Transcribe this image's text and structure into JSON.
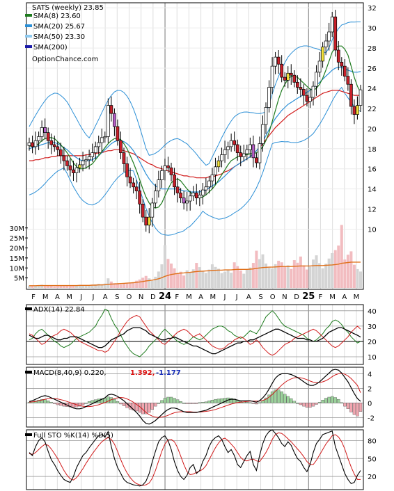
{
  "chart_data": {
    "type": "candlestick",
    "symbol_label": "SATS (weekly) 23.85",
    "watermark": "OptionChance.com",
    "legend": [
      {
        "label": "SMA(8) 23.60",
        "color": "#1e7b1e"
      },
      {
        "label": "SMA(20) 25.67",
        "color": "#2b8fd6"
      },
      {
        "label": "SMA(50) 23.30",
        "color": "#8ec9ef"
      },
      {
        "label": "SMA(200)",
        "color": "#1a1aa8"
      }
    ],
    "price_axis": {
      "ylim": [
        9,
        32.5
      ],
      "ticks": [
        10,
        12,
        14,
        16,
        18,
        20,
        22,
        24,
        26,
        28,
        30,
        32
      ]
    },
    "volume_axis": {
      "ylim": [
        0,
        32
      ],
      "ticks": [
        "5M",
        "10M",
        "15M",
        "20M",
        "25M",
        "30M"
      ],
      "tick_values": [
        5,
        10,
        15,
        20,
        25,
        30
      ]
    },
    "x_labels": [
      "F",
      "M",
      "A",
      "M",
      "J",
      "J",
      "A",
      "S",
      "O",
      "N",
      "D",
      "24",
      "F",
      "M",
      "A",
      "M",
      "J",
      "J",
      "A",
      "S",
      "O",
      "N",
      "D",
      "25",
      "F",
      "M",
      "A",
      "M"
    ],
    "year_marks": [
      "24",
      "25"
    ],
    "closes": [
      18.6,
      18.2,
      18.8,
      19.2,
      20.1,
      19.6,
      18.8,
      18.4,
      18.2,
      17.9,
      17.3,
      16.8,
      16.3,
      15.9,
      15.6,
      16.1,
      16.4,
      16.8,
      16.9,
      17.2,
      17.6,
      18.2,
      18.6,
      19.1,
      19.2,
      22.3,
      21.5,
      20.2,
      18.8,
      17.6,
      16.5,
      15.2,
      14.6,
      14.2,
      13.8,
      12.5,
      11.2,
      10.4,
      11.2,
      12.6,
      13.8,
      14.9,
      15.8,
      16.3,
      16.1,
      15.4,
      14.2,
      13.6,
      13.1,
      12.6,
      12.8,
      13.3,
      13.6,
      13.1,
      13.4,
      13.9,
      14.2,
      14.8,
      15.4,
      16.2,
      16.8,
      17.4,
      17.9,
      18.2,
      18.8,
      18.4,
      17.6,
      17.2,
      17.5,
      17.9,
      18.4,
      17.1,
      16.6,
      18.5,
      20.4,
      22.1,
      24.1,
      26.2,
      27.1,
      26.4,
      25.1,
      24.8,
      25.5,
      25.3,
      24.6,
      24.1,
      23.9,
      23.3,
      22.7,
      23.1,
      24.2,
      25.6,
      26.7,
      28.1,
      28.7,
      29.6,
      31.1,
      27.8,
      26.6,
      26.2,
      25.2,
      24.4,
      22.2,
      21.4,
      22.3,
      23.85
    ],
    "sma8": [
      18.3,
      18.2,
      18.3,
      18.5,
      18.8,
      19.0,
      19.1,
      19.1,
      19.0,
      18.7,
      18.4,
      18.0,
      17.6,
      17.1,
      16.6,
      16.2,
      16.0,
      16.0,
      16.1,
      16.3,
      16.5,
      16.9,
      17.3,
      17.7,
      18.1,
      18.5,
      18.8,
      19.0,
      19.0,
      18.9,
      18.5,
      18.0,
      17.3,
      16.6,
      15.8,
      14.9,
      14.0,
      13.2,
      12.6,
      12.2,
      12.1,
      12.2,
      12.6,
      13.3,
      14.0,
      14.6,
      14.9,
      15.0,
      14.8,
      14.4,
      14.0,
      13.7,
      13.4,
      13.2,
      13.1,
      13.2,
      13.4,
      13.7,
      14.0,
      14.4,
      14.9,
      15.4,
      15.9,
      16.4,
      16.8,
      17.0,
      17.2,
      17.3,
      17.4,
      17.4,
      17.5,
      17.5,
      17.6,
      17.8,
      18.2,
      18.8,
      19.6,
      20.7,
      21.8,
      22.9,
      23.8,
      24.4,
      24.9,
      25.2,
      25.2,
      25.1,
      24.8,
      24.5,
      24.2,
      23.9,
      23.8,
      24.0,
      24.4,
      25.0,
      25.8,
      26.7,
      27.6,
      28.0,
      28.2,
      28.2,
      27.9,
      27.3,
      26.2,
      25.1,
      24.2,
      23.6
    ],
    "sma20": [
      18.0,
      18.1,
      18.2,
      18.3,
      18.4,
      18.5,
      18.6,
      18.6,
      18.6,
      18.5,
      18.3,
      18.1,
      17.9,
      17.6,
      17.3,
      17.1,
      16.9,
      16.8,
      16.8,
      16.8,
      16.9,
      17.1,
      17.3,
      17.6,
      17.9,
      18.2,
      18.5,
      18.7,
      18.8,
      18.8,
      18.7,
      18.5,
      18.2,
      17.8,
      17.3,
      16.7,
      16.1,
      15.5,
      15.0,
      14.6,
      14.3,
      14.1,
      14.0,
      14.0,
      14.0,
      14.0,
      14.0,
      14.0,
      13.9,
      13.8,
      13.8,
      13.7,
      13.7,
      13.7,
      13.7,
      13.8,
      13.9,
      14.1,
      14.3,
      14.5,
      14.7,
      15.0,
      15.3,
      15.6,
      15.9,
      16.2,
      16.4,
      16.6,
      16.8,
      17.0,
      17.2,
      17.5,
      17.8,
      18.2,
      18.7,
      19.3,
      19.9,
      20.5,
      21.0,
      21.4,
      21.8,
      22.1,
      22.4,
      22.6,
      22.8,
      23.0,
      23.2,
      23.4,
      23.6,
      23.8,
      24.0,
      24.3,
      24.6,
      24.9,
      25.2,
      25.5,
      25.8,
      26.0,
      26.1,
      26.1,
      25.9,
      25.8,
      25.7,
      25.6,
      25.6,
      25.67
    ],
    "sma50": [
      16.8,
      16.8,
      16.9,
      16.9,
      17.0,
      17.1,
      17.1,
      17.2,
      17.2,
      17.3,
      17.3,
      17.3,
      17.3,
      17.3,
      17.3,
      17.3,
      17.3,
      17.3,
      17.4,
      17.4,
      17.5,
      17.5,
      17.6,
      17.6,
      17.7,
      17.8,
      17.8,
      17.9,
      17.9,
      17.9,
      17.8,
      17.7,
      17.6,
      17.5,
      17.3,
      17.1,
      16.9,
      16.7,
      16.5,
      16.4,
      16.2,
      16.1,
      16.0,
      15.9,
      15.8,
      15.7,
      15.6,
      15.5,
      15.4,
      15.3,
      15.3,
      15.2,
      15.2,
      15.1,
      15.1,
      15.1,
      15.1,
      15.2,
      15.2,
      15.3,
      15.4,
      15.5,
      15.7,
      15.8,
      16.0,
      16.2,
      16.4,
      16.6,
      16.8,
      17.0,
      17.2,
      17.5,
      17.8,
      18.1,
      18.5,
      18.9,
      19.3,
      19.7,
      20.1,
      20.4,
      20.7,
      21.0,
      21.3,
      21.5,
      21.7,
      21.9,
      22.1,
      22.3,
      22.5,
      22.7,
      22.9,
      23.1,
      23.3,
      23.5,
      23.6,
      23.7,
      23.8,
      23.8,
      23.8,
      23.7,
      23.6,
      23.5,
      23.4,
      23.3,
      23.3,
      23.3
    ],
    "volumes": [
      1.2,
      0.9,
      1.1,
      1.4,
      1.6,
      1.0,
      1.2,
      1.3,
      0.8,
      1.1,
      1.3,
      1.4,
      1.2,
      1.0,
      1.1,
      1.3,
      1.5,
      1.2,
      1.4,
      1.3,
      1.6,
      1.8,
      2.1,
      1.9,
      2.2,
      4.8,
      3.2,
      2.4,
      2.0,
      1.8,
      2.1,
      2.6,
      2.3,
      2.9,
      3.6,
      4.2,
      5.1,
      6.0,
      4.8,
      3.5,
      5.6,
      8.2,
      11.8,
      21.4,
      14.5,
      12.2,
      9.8,
      7.4,
      8.1,
      6.2,
      8.8,
      7.9,
      9.3,
      12.5,
      10.4,
      8.6,
      7.5,
      9.2,
      11.8,
      10.5,
      9.6,
      7.4,
      8.1,
      9.2,
      7.6,
      12.8,
      10.9,
      8.7,
      7.1,
      9.4,
      10.2,
      12.5,
      18.6,
      14.4,
      16.8,
      12.2,
      10.6,
      9.7,
      11.9,
      13.6,
      12.8,
      10.9,
      11.3,
      9.5,
      13.9,
      12.6,
      15.7,
      11.3,
      9.2,
      10.6,
      14.2,
      16.3,
      12.4,
      9.8,
      12.1,
      14.7,
      17.4,
      18.9,
      21.2,
      31.5,
      14.2,
      16.6,
      18.3,
      11.6,
      9.4,
      8.2
    ],
    "volume_avg": [
      1.1,
      1.1,
      1.1,
      1.2,
      1.2,
      1.2,
      1.2,
      1.2,
      1.2,
      1.2,
      1.2,
      1.2,
      1.2,
      1.2,
      1.2,
      1.2,
      1.3,
      1.3,
      1.3,
      1.3,
      1.4,
      1.4,
      1.5,
      1.5,
      1.6,
      1.8,
      1.9,
      2.0,
      2.1,
      2.2,
      2.3,
      2.4,
      2.5,
      2.6,
      2.8,
      3.0,
      3.2,
      3.5,
      3.7,
      3.9,
      4.2,
      4.6,
      5.1,
      5.8,
      6.3,
      6.7,
      7.0,
      7.2,
      7.4,
      7.5,
      7.7,
      7.8,
      8.0,
      8.2,
      8.3,
      8.4,
      8.5,
      8.6,
      8.7,
      8.8,
      8.9,
      8.9,
      9.0,
      9.0,
      9.0,
      9.2,
      9.3,
      9.3,
      9.3,
      9.3,
      9.4,
      9.5,
      9.8,
      10.0,
      10.2,
      10.3,
      10.4,
      10.4,
      10.5,
      10.6,
      10.7,
      10.7,
      10.7,
      10.7,
      10.8,
      10.9,
      11.0,
      11.0,
      11.0,
      11.0,
      11.1,
      11.2,
      11.2,
      11.2,
      11.3,
      11.4,
      11.5,
      11.7,
      11.9,
      12.3,
      12.5,
      12.7,
      12.9,
      12.9,
      12.9,
      12.9
    ],
    "adx_panel": {
      "label": "ADX(14) 22.84",
      "ticks": [
        10,
        20,
        30,
        40
      ],
      "ylim": [
        5,
        44
      ],
      "adx": [
        24,
        23,
        22,
        22,
        23,
        24,
        24,
        23,
        22,
        21,
        21,
        22,
        22,
        23,
        23,
        23,
        22,
        21,
        20,
        19,
        18,
        17,
        16,
        16,
        17,
        19,
        21,
        22,
        23,
        24,
        25,
        27,
        28,
        29,
        29,
        29,
        28,
        27,
        25,
        24,
        23,
        22,
        21,
        21,
        22,
        22,
        23,
        22,
        21,
        20,
        19,
        18,
        17,
        17,
        16,
        15,
        14,
        13,
        12,
        12,
        13,
        14,
        15,
        16,
        17,
        18,
        19,
        19,
        20,
        20,
        21,
        21,
        22,
        23,
        24,
        25,
        26,
        27,
        28,
        28,
        27,
        26,
        25,
        24,
        23,
        22,
        22,
        22,
        21,
        21,
        20,
        20,
        21,
        22,
        24,
        26,
        27,
        28,
        29,
        29,
        28,
        27,
        26,
        25,
        24,
        22.84
      ],
      "plus_di": [
        21,
        22,
        25,
        27,
        28,
        26,
        24,
        22,
        20,
        19,
        17,
        16,
        17,
        18,
        20,
        22,
        23,
        24,
        25,
        26,
        28,
        30,
        34,
        37,
        41,
        40,
        35,
        31,
        28,
        24,
        20,
        17,
        14,
        12,
        11,
        10,
        12,
        14,
        17,
        19,
        21,
        23,
        26,
        28,
        26,
        24,
        22,
        20,
        19,
        18,
        19,
        21,
        23,
        22,
        21,
        22,
        24,
        26,
        28,
        29,
        30,
        30,
        29,
        27,
        26,
        24,
        23,
        22,
        23,
        25,
        27,
        26,
        25,
        28,
        32,
        36,
        38,
        40,
        38,
        35,
        32,
        30,
        29,
        28,
        27,
        26,
        25,
        24,
        22,
        21,
        20,
        21,
        23,
        25,
        28,
        30,
        33,
        34,
        33,
        31,
        28,
        26,
        23,
        21,
        19,
        20
      ],
      "minus_di": [
        25,
        24,
        22,
        20,
        18,
        19,
        21,
        23,
        24,
        25,
        27,
        28,
        27,
        26,
        24,
        22,
        20,
        19,
        18,
        17,
        16,
        15,
        14,
        14,
        13,
        14,
        17,
        20,
        23,
        27,
        30,
        33,
        35,
        36,
        37,
        36,
        33,
        30,
        27,
        25,
        23,
        21,
        19,
        18,
        20,
        22,
        24,
        26,
        27,
        28,
        27,
        25,
        23,
        24,
        25,
        23,
        21,
        19,
        17,
        16,
        15,
        15,
        16,
        18,
        19,
        21,
        22,
        23,
        22,
        20,
        18,
        19,
        21,
        19,
        16,
        14,
        12,
        11,
        12,
        14,
        16,
        18,
        19,
        20,
        22,
        23,
        24,
        25,
        26,
        27,
        28,
        27,
        25,
        23,
        21,
        19,
        17,
        16,
        17,
        19,
        21,
        23,
        26,
        28,
        30,
        28
      ]
    },
    "macd_panel": {
      "label": "MACD(8,40,9) 0.220,",
      "value2": "1.392,",
      "value3": "-1.177",
      "ticks": [
        -2,
        0,
        2,
        4
      ],
      "ylim": [
        -3.3,
        4.9
      ],
      "macd": [
        0.2,
        0.3,
        0.5,
        0.7,
        0.9,
        1.0,
        0.9,
        0.7,
        0.5,
        0.3,
        0.1,
        -0.1,
        -0.3,
        -0.5,
        -0.7,
        -0.8,
        -0.8,
        -0.7,
        -0.5,
        -0.3,
        -0.1,
        0.1,
        0.3,
        0.5,
        0.7,
        1.1,
        1.2,
        1.1,
        0.9,
        0.6,
        0.3,
        -0.1,
        -0.5,
        -0.9,
        -1.3,
        -1.8,
        -2.4,
        -2.8,
        -2.9,
        -2.7,
        -2.4,
        -2.0,
        -1.6,
        -1.2,
        -0.9,
        -0.7,
        -0.7,
        -0.8,
        -1.0,
        -1.2,
        -1.3,
        -1.3,
        -1.3,
        -1.3,
        -1.2,
        -1.1,
        -1.0,
        -0.8,
        -0.6,
        -0.4,
        -0.2,
        0.0,
        0.2,
        0.4,
        0.5,
        0.5,
        0.4,
        0.3,
        0.3,
        0.3,
        0.3,
        0.2,
        0.1,
        0.3,
        0.7,
        1.2,
        1.9,
        2.7,
        3.4,
        3.8,
        4.0,
        4.0,
        4.0,
        3.9,
        3.7,
        3.5,
        3.2,
        2.9,
        2.6,
        2.4,
        2.4,
        2.6,
        2.9,
        3.3,
        3.7,
        4.1,
        4.5,
        4.6,
        4.5,
        4.1,
        3.5,
        2.9,
        2.1,
        1.3,
        0.6,
        0.22
      ],
      "signal": [
        0.1,
        0.15,
        0.2,
        0.3,
        0.4,
        0.5,
        0.6,
        0.6,
        0.6,
        0.55,
        0.45,
        0.35,
        0.2,
        0.05,
        -0.1,
        -0.25,
        -0.35,
        -0.45,
        -0.5,
        -0.5,
        -0.45,
        -0.35,
        -0.25,
        -0.1,
        0.05,
        0.25,
        0.45,
        0.6,
        0.7,
        0.75,
        0.7,
        0.55,
        0.35,
        0.1,
        -0.2,
        -0.5,
        -0.9,
        -1.3,
        -1.6,
        -1.8,
        -1.95,
        -2.0,
        -1.95,
        -1.85,
        -1.7,
        -1.5,
        -1.35,
        -1.25,
        -1.2,
        -1.2,
        -1.2,
        -1.2,
        -1.25,
        -1.25,
        -1.25,
        -1.2,
        -1.15,
        -1.1,
        -1.0,
        -0.9,
        -0.75,
        -0.6,
        -0.45,
        -0.3,
        -0.15,
        -0.05,
        0.05,
        0.1,
        0.15,
        0.2,
        0.25,
        0.25,
        0.25,
        0.25,
        0.35,
        0.5,
        0.8,
        1.15,
        1.6,
        2.0,
        2.45,
        2.8,
        3.1,
        3.3,
        3.45,
        3.5,
        3.45,
        3.35,
        3.2,
        3.0,
        2.85,
        2.8,
        2.8,
        2.9,
        3.05,
        3.3,
        3.6,
        3.85,
        4.0,
        4.05,
        3.95,
        3.7,
        3.35,
        2.9,
        2.4,
        1.4
      ]
    },
    "sto_panel": {
      "label": "Full STO %K(14) %D(5)",
      "ticks": [
        20,
        50,
        80
      ],
      "ylim": [
        -2,
        98
      ],
      "k": [
        60,
        55,
        70,
        80,
        85,
        78,
        62,
        48,
        40,
        30,
        22,
        15,
        12,
        10,
        20,
        35,
        45,
        55,
        60,
        68,
        75,
        82,
        88,
        90,
        86,
        95,
        70,
        50,
        35,
        25,
        15,
        10,
        8,
        6,
        5,
        4,
        6,
        12,
        25,
        45,
        62,
        78,
        85,
        88,
        80,
        65,
        45,
        30,
        20,
        15,
        22,
        35,
        40,
        25,
        30,
        45,
        55,
        70,
        80,
        85,
        88,
        82,
        70,
        60,
        65,
        55,
        40,
        35,
        45,
        55,
        62,
        40,
        30,
        55,
        75,
        88,
        95,
        98,
        92,
        85,
        75,
        70,
        78,
        72,
        60,
        50,
        45,
        35,
        28,
        40,
        60,
        75,
        82,
        90,
        92,
        94,
        96,
        70,
        55,
        40,
        25,
        15,
        8,
        10,
        22,
        30
      ],
      "d": [
        58,
        57,
        60,
        65,
        70,
        74,
        72,
        66,
        58,
        50,
        40,
        30,
        22,
        16,
        14,
        18,
        25,
        33,
        42,
        50,
        58,
        65,
        72,
        78,
        82,
        85,
        82,
        74,
        62,
        48,
        36,
        26,
        18,
        12,
        8,
        6,
        5,
        6,
        9,
        17,
        30,
        46,
        62,
        74,
        81,
        82,
        78,
        68,
        54,
        40,
        28,
        23,
        24,
        27,
        29,
        32,
        38,
        48,
        58,
        68,
        76,
        82,
        84,
        80,
        74,
        68,
        60,
        52,
        47,
        46,
        48,
        49,
        46,
        45,
        52,
        60,
        70,
        82,
        90,
        93,
        92,
        88,
        83,
        78,
        72,
        66,
        60,
        53,
        45,
        40,
        40,
        47,
        56,
        65,
        74,
        81,
        88,
        90,
        86,
        78,
        66,
        50,
        36,
        24,
        15,
        15
      ]
    }
  }
}
